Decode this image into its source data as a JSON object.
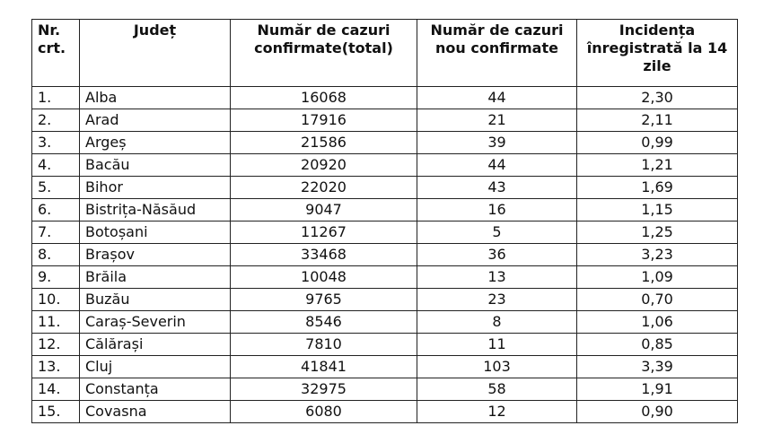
{
  "table": {
    "headers": [
      "Nr. crt.",
      "Județ",
      "Număr de cazuri confirmate(total)",
      "Număr de cazuri nou confirmate",
      "Incidența înregistrată la 14 zile"
    ],
    "rows": [
      [
        "1.",
        "Alba",
        "16068",
        "44",
        "2,30"
      ],
      [
        "2.",
        "Arad",
        "17916",
        "21",
        "2,11"
      ],
      [
        "3.",
        "Argeș",
        "21586",
        "39",
        "0,99"
      ],
      [
        "4.",
        "Bacău",
        "20920",
        "44",
        "1,21"
      ],
      [
        "5.",
        "Bihor",
        "22020",
        "43",
        "1,69"
      ],
      [
        "6.",
        "Bistrița-Năsăud",
        "9047",
        "16",
        "1,15"
      ],
      [
        "7.",
        "Botoșani",
        "11267",
        "5",
        "1,25"
      ],
      [
        "8.",
        "Brașov",
        "33468",
        "36",
        "3,23"
      ],
      [
        "9.",
        "Brăila",
        "10048",
        "13",
        "1,09"
      ],
      [
        "10.",
        "Buzău",
        "9765",
        "23",
        "0,70"
      ],
      [
        "11.",
        "Caraș-Severin",
        "8546",
        "8",
        "1,06"
      ],
      [
        "12.",
        "Călărași",
        "7810",
        "11",
        "0,85"
      ],
      [
        "13.",
        "Cluj",
        "41841",
        "103",
        "3,39"
      ],
      [
        "14.",
        "Constanța",
        "32975",
        "58",
        "1,91"
      ],
      [
        "15.",
        "Covasna",
        "6080",
        "12",
        "0,90"
      ]
    ]
  }
}
